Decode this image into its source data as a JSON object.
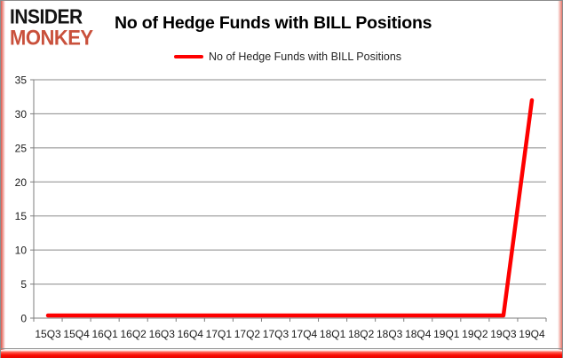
{
  "logo": {
    "line1": "INSIDER",
    "line2": "MONKEY",
    "color_top": "#141414",
    "color_bottom": "#c9503b"
  },
  "header": {
    "title": "No of Hedge Funds with BILL Positions"
  },
  "legend": {
    "label": "No of Hedge Funds with BILL Positions",
    "line_color": "#fe0000"
  },
  "frame": {
    "border_color": "#8c8c8c",
    "accent_red": "#fb0a02",
    "accent_pink": "#f3b5b0"
  },
  "chart_data": {
    "type": "line",
    "title": "No of Hedge Funds with BILL Positions",
    "categories": [
      "15Q3",
      "15Q4",
      "16Q1",
      "16Q2",
      "16Q3",
      "16Q4",
      "17Q1",
      "17Q2",
      "17Q3",
      "17Q4",
      "18Q1",
      "18Q2",
      "18Q3",
      "18Q4",
      "19Q1",
      "19Q2",
      "19Q3",
      "19Q4"
    ],
    "series": [
      {
        "name": "No of Hedge Funds with BILL Positions",
        "values": [
          0,
          0,
          0,
          0,
          0,
          0,
          0,
          0,
          0,
          0,
          0,
          0,
          0,
          0,
          0,
          0,
          0,
          32
        ],
        "color": "#fe0000"
      }
    ],
    "xlabel": "",
    "ylabel": "",
    "ylim": [
      0,
      35
    ],
    "ytick_step": 5,
    "grid": "on",
    "grid_color": "#8a8a8a",
    "axis_color": "#7d7d7d",
    "tick_label_color": "#1a1a1a",
    "legend_position": "top"
  }
}
